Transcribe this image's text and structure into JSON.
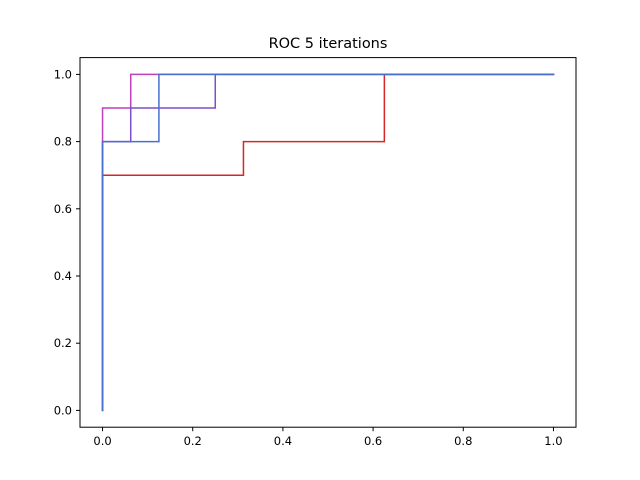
{
  "chart_data": {
    "type": "line",
    "title": "ROC 5 iterations",
    "xlabel": "",
    "ylabel": "",
    "xlim": [
      -0.05,
      1.05
    ],
    "ylim": [
      -0.05,
      1.05
    ],
    "xticks": [
      0.0,
      0.2,
      0.4,
      0.6,
      0.8,
      1.0
    ],
    "yticks": [
      0.0,
      0.2,
      0.4,
      0.6,
      0.8,
      1.0
    ],
    "xtick_labels": [
      "0.0",
      "0.2",
      "0.4",
      "0.6",
      "0.8",
      "1.0"
    ],
    "ytick_labels": [
      "0.0",
      "0.2",
      "0.4",
      "0.6",
      "0.8",
      "1.0"
    ],
    "grid": false,
    "series": [
      {
        "color": "#d62728",
        "x": [
          0.0,
          0.0,
          0.0,
          0.3125,
          0.3125,
          0.625,
          0.625,
          1.0
        ],
        "y": [
          0.0,
          0.7,
          0.7,
          0.7,
          0.8,
          0.8,
          1.0,
          1.0
        ]
      },
      {
        "color": "#bf3fbf",
        "x": [
          0.0,
          0.0,
          0.0625,
          0.0625,
          1.0
        ],
        "y": [
          0.0,
          0.9,
          0.9,
          1.0,
          1.0
        ]
      },
      {
        "color": "#7b4fc9",
        "x": [
          0.0,
          0.0,
          0.0625,
          0.0625,
          0.25,
          0.25,
          1.0
        ],
        "y": [
          0.0,
          0.8,
          0.8,
          0.9,
          0.9,
          1.0,
          1.0
        ]
      },
      {
        "color": "#4a6fcf",
        "x": [
          0.0,
          0.0,
          0.125,
          0.125,
          1.0
        ],
        "y": [
          0.0,
          0.8,
          0.8,
          1.0,
          1.0
        ]
      }
    ]
  }
}
